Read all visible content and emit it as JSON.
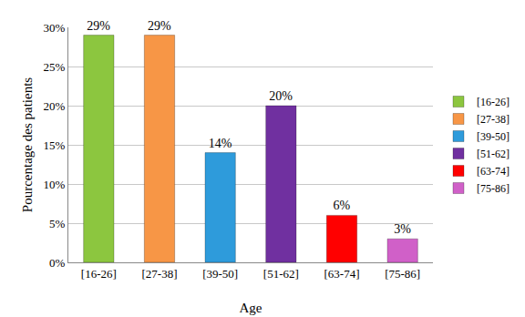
{
  "chart_data": {
    "type": "bar",
    "x_label": "Age",
    "y_label": "Pourcentage des patients",
    "categories": [
      "[16-26]",
      "[27-38]",
      "[39-50]",
      "[51-62]",
      "[63-74]",
      "[75-86]"
    ],
    "values": [
      29,
      29,
      14,
      20,
      6,
      3
    ],
    "value_labels": [
      "29%",
      "29%",
      "14%",
      "20%",
      "6%",
      "3%"
    ],
    "colors": [
      "#8cc63f",
      "#f79646",
      "#2e9bdb",
      "#7030a0",
      "#ff0000",
      "#d060c8"
    ],
    "ylim": [
      0,
      30
    ],
    "yticks": [
      {
        "value": 0,
        "label": "0%"
      },
      {
        "value": 5,
        "label": "5%"
      },
      {
        "value": 10,
        "label": "10%"
      },
      {
        "value": 15,
        "label": "15%"
      },
      {
        "value": 20,
        "label": "20%"
      },
      {
        "value": 25,
        "label": "25%"
      },
      {
        "value": 30,
        "label": "30%"
      }
    ],
    "grid": true,
    "legend": "right",
    "data_labels": true
  }
}
